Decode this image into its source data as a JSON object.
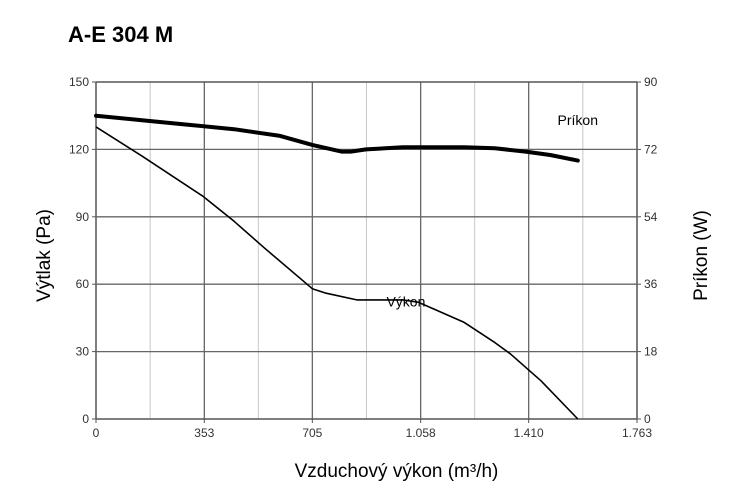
{
  "chart_data": {
    "type": "line",
    "title": "A-E 304 M",
    "xlabel": "Vzduchový výkon (m³/h)",
    "ylabel": "Výtlak (Pa)",
    "y2label": "Príkon (W)",
    "xlim": [
      0,
      1763
    ],
    "ylim": [
      0,
      150
    ],
    "y2lim": [
      0,
      90
    ],
    "x_ticks": [
      "0",
      "353",
      "705",
      "1.058",
      "1.410",
      "1.763"
    ],
    "x_tick_values": [
      0,
      353,
      705,
      1058,
      1410,
      1763
    ],
    "y_ticks": [
      0,
      30,
      60,
      90,
      120,
      150
    ],
    "y2_ticks": [
      0,
      18,
      36,
      54,
      72,
      90
    ],
    "grid": true,
    "series": [
      {
        "name": "Výkon",
        "axis": "left",
        "x": [
          0,
          150,
          350,
          450,
          550,
          705,
          750,
          850,
          1000,
          1050,
          1100,
          1200,
          1300,
          1350,
          1450,
          1570
        ],
        "y": [
          130,
          117,
          99,
          88,
          76,
          58,
          56,
          53,
          53,
          52,
          49,
          43,
          34,
          29,
          17,
          0
        ]
      },
      {
        "name": "Príkon",
        "axis": "right",
        "x": [
          0,
          150,
          300,
          450,
          600,
          705,
          800,
          830,
          880,
          1000,
          1058,
          1200,
          1300,
          1400,
          1480,
          1570
        ],
        "y": [
          81,
          79.8,
          78.6,
          77.4,
          75.6,
          73.2,
          71.4,
          71.4,
          72,
          72.6,
          72.6,
          72.6,
          72.3,
          71.4,
          70.5,
          69
        ]
      }
    ]
  }
}
